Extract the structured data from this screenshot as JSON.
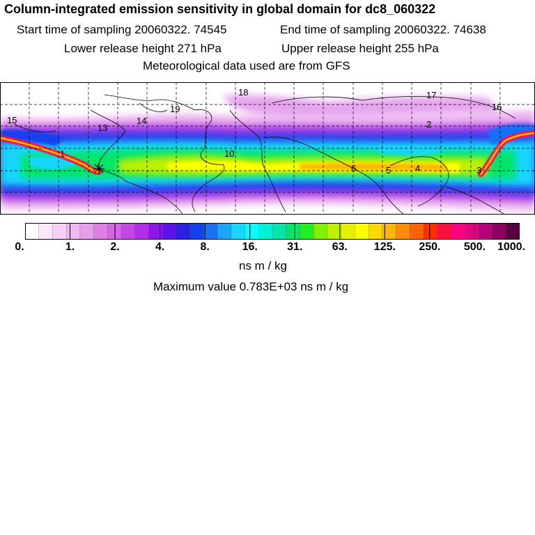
{
  "header": {
    "title": "Column-integrated emission sensitivity in global domain for dc8_060322",
    "start_time": "Start time of sampling 20060322. 74545",
    "end_time": "End time of sampling 20060322. 74638",
    "lower_release": "Lower release height  271 hPa",
    "upper_release": "Upper release height  255 hPa",
    "met_data": "Meteorological data used are from GFS"
  },
  "map": {
    "trajectory_labels": [
      "18",
      "17",
      "16",
      "19",
      "15",
      "14",
      "13",
      "1",
      "10",
      "6",
      "5",
      "4",
      "3",
      "2"
    ]
  },
  "colorbar": {
    "colors": [
      "#ffffff",
      "#fbe8fb",
      "#f6d0f6",
      "#f0b8f0",
      "#ea9cec",
      "#df80e6",
      "#d466e6",
      "#c548e6",
      "#b02ee6",
      "#8a18e6",
      "#5a12e6",
      "#2a20e6",
      "#1440f0",
      "#1870f6",
      "#18a6ff",
      "#18d6ff",
      "#00ffff",
      "#00f0d6",
      "#00e6a6",
      "#00e66a",
      "#20f020",
      "#80f000",
      "#bef000",
      "#e6f000",
      "#ffff00",
      "#ffd800",
      "#ffb400",
      "#ff8c00",
      "#ff6400",
      "#ff3000",
      "#ff1040",
      "#ff0080",
      "#e00080",
      "#b8007a",
      "#8c0060",
      "#560040"
    ],
    "major_labels": [
      "0.",
      "1.",
      "2.",
      "4.",
      "8.",
      "16.",
      "31.",
      "63.",
      "125.",
      "250.",
      "500.",
      "1000."
    ],
    "units": "ns m / kg"
  },
  "max_value": "Maximum value  0.783E+03 ns m / kg"
}
